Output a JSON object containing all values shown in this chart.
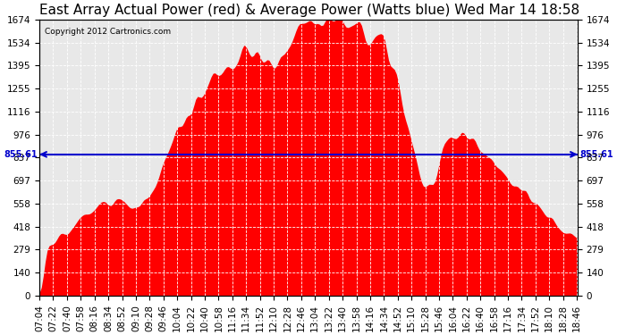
{
  "title": "East Array Actual Power (red) & Average Power (Watts blue) Wed Mar 14 18:58",
  "copyright": "Copyright 2012 Cartronics.com",
  "average_power": 855.61,
  "y_max": 1673.5,
  "y_ticks": [
    0.0,
    139.5,
    278.9,
    418.4,
    557.8,
    697.3,
    836.7,
    976.2,
    1115.7,
    1255.1,
    1394.6,
    1534.0,
    1673.5
  ],
  "fill_color": "#FF0000",
  "line_color": "#0000CC",
  "bg_color": "#FFFFFF",
  "grid_color": "#FFFFFF",
  "title_fontsize": 11,
  "tick_fontsize": 7.5,
  "x_start_hour": 7,
  "x_start_min": 4,
  "x_end_hour": 18,
  "x_end_min": 47,
  "n_points": 280
}
